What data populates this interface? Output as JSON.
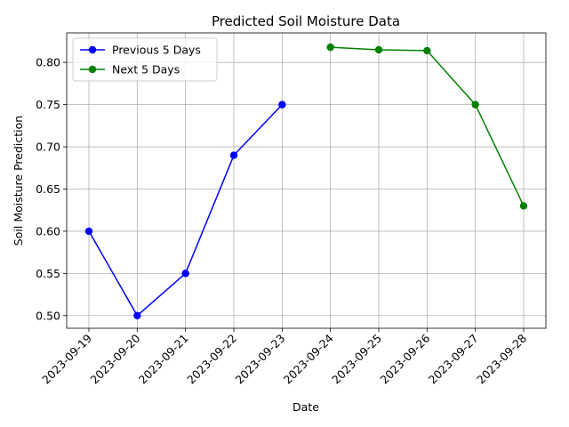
{
  "chart_data": {
    "type": "line",
    "title": "Predicted Soil Moisture Data",
    "xlabel": "Date",
    "ylabel": "Soil Moisture Prediction",
    "categories": [
      "2023-09-19",
      "2023-09-20",
      "2023-09-21",
      "2023-09-22",
      "2023-09-23",
      "2023-09-24",
      "2023-09-25",
      "2023-09-26",
      "2023-09-27",
      "2023-09-28"
    ],
    "ylim": [
      0.485,
      0.835
    ],
    "yticks": [
      "0.50",
      "0.55",
      "0.60",
      "0.65",
      "0.70",
      "0.75",
      "0.80"
    ],
    "grid": true,
    "legend_position": "top-left",
    "series": [
      {
        "name": "Previous 5 Days",
        "color": "#0000ff",
        "points": [
          {
            "x": "2023-09-19",
            "y": 0.6
          },
          {
            "x": "2023-09-20",
            "y": 0.5
          },
          {
            "x": "2023-09-21",
            "y": 0.55
          },
          {
            "x": "2023-09-22",
            "y": 0.69
          },
          {
            "x": "2023-09-23",
            "y": 0.75
          }
        ]
      },
      {
        "name": "Next 5 Days",
        "color": "#008000",
        "points": [
          {
            "x": "2023-09-24",
            "y": 0.818
          },
          {
            "x": "2023-09-25",
            "y": 0.815
          },
          {
            "x": "2023-09-26",
            "y": 0.814
          },
          {
            "x": "2023-09-27",
            "y": 0.75
          },
          {
            "x": "2023-09-28",
            "y": 0.63
          }
        ]
      }
    ]
  }
}
